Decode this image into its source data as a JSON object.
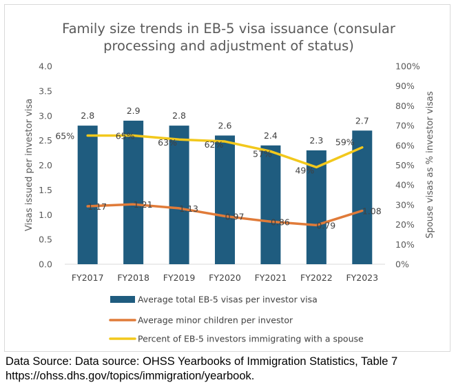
{
  "chart_data": {
    "type": "bar",
    "title_lines": [
      "Family size trends in EB-5 visa issuance (consular",
      "processing and adjustment of status)"
    ],
    "categories": [
      "FY2017",
      "FY2018",
      "FY2019",
      "FY2020",
      "FY2021",
      "FY2022",
      "FY2023"
    ],
    "ylabel_left": "Visas issued per investor visa",
    "ylabel_right": "Spouse visas as % investor visas",
    "ylim_left": [
      0,
      4.0
    ],
    "yticks_left": [
      "0.0",
      "0.5",
      "1.0",
      "1.5",
      "2.0",
      "2.5",
      "3.0",
      "3.5",
      "4.0"
    ],
    "ylim_right": [
      0,
      100
    ],
    "yticks_right": [
      "0%",
      "10%",
      "20%",
      "30%",
      "40%",
      "50%",
      "60%",
      "70%",
      "80%",
      "90%",
      "100%"
    ],
    "series": [
      {
        "name": "Average total EB-5 visas per investor visa",
        "type": "bar",
        "axis": "left",
        "color": "#1f5c7f",
        "values": [
          2.8,
          2.9,
          2.8,
          2.6,
          2.4,
          2.3,
          2.7
        ],
        "labels": [
          "2.8",
          "2.9",
          "2.8",
          "2.6",
          "2.4",
          "2.3",
          "2.7"
        ]
      },
      {
        "name": "Average minor children per investor",
        "type": "line",
        "axis": "left",
        "color": "#e07b39",
        "values": [
          1.17,
          1.21,
          1.13,
          0.97,
          0.86,
          0.79,
          1.08
        ],
        "labels": [
          "1.17",
          "1.21",
          "1.13",
          "0.97",
          "0.86",
          "0.79",
          "1.08"
        ]
      },
      {
        "name": "Percent of EB-5 investors immigrating with a spouse",
        "type": "line",
        "axis": "right",
        "color": "#f2c81c",
        "values": [
          65,
          65,
          63,
          62,
          57,
          49,
          59
        ],
        "labels": [
          "65%",
          "65%",
          "63%",
          "62%",
          "57%",
          "49%",
          "59%"
        ]
      }
    ],
    "grid": false,
    "legend_position": "bottom"
  },
  "source_lines": [
    "Data Source: Data source: OHSS Yearbooks of Immigration Statistics, Table 7",
    "https://ohss.dhs.gov/topics/immigration/yearbook."
  ]
}
